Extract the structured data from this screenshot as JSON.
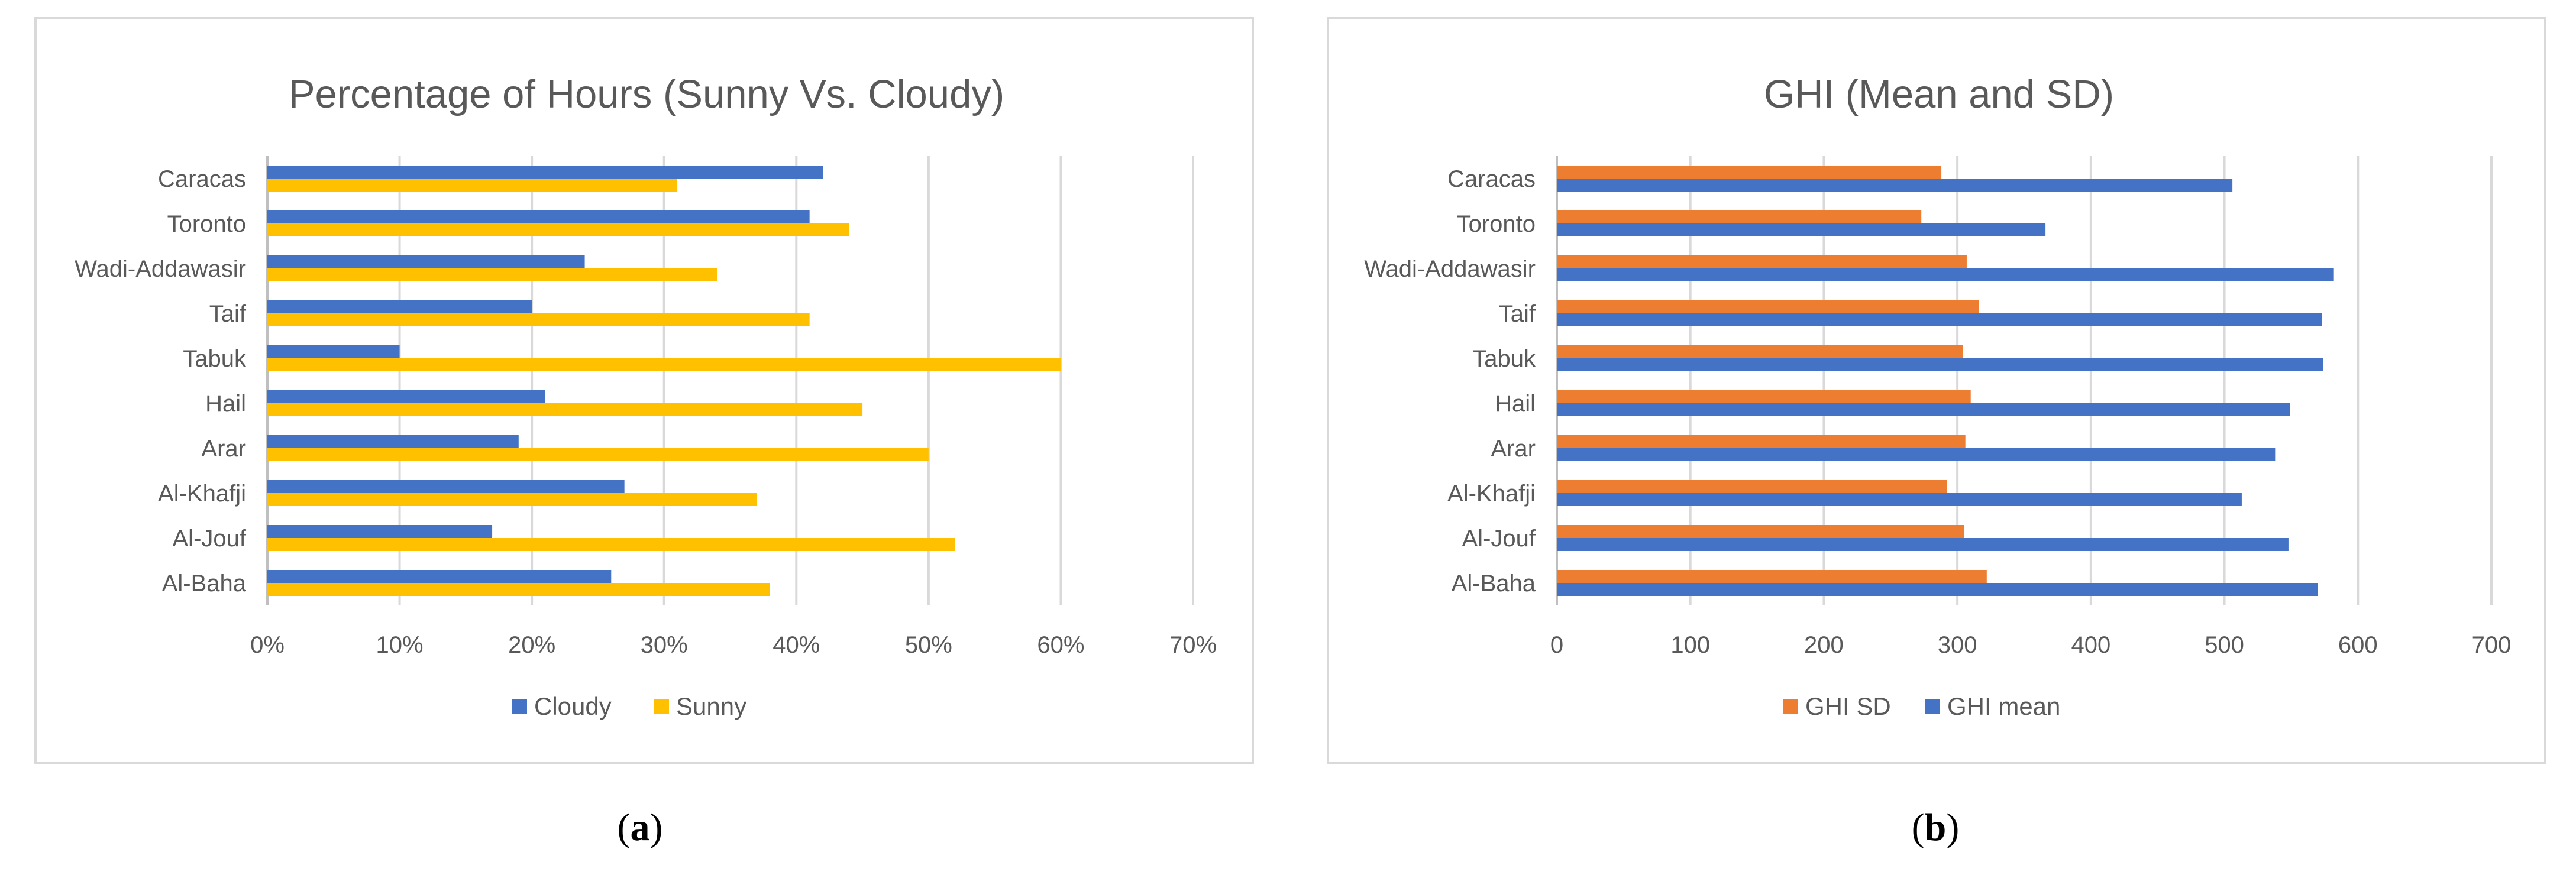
{
  "chart_data": [
    {
      "type": "bar",
      "orientation": "horizontal",
      "title": "Percentage of Hours (Sunny Vs. Cloudy)",
      "categories": [
        "Caracas",
        "Toronto",
        "Wadi-Addawasir",
        "Taif",
        "Tabuk",
        "Hail",
        "Arar",
        "Al-Khafji",
        "Al-Jouf",
        "Al-Baha"
      ],
      "series": [
        {
          "name": "Cloudy",
          "color": "#4472c4",
          "values": [
            42,
            41,
            24,
            20,
            10,
            21,
            19,
            27,
            17,
            26
          ]
        },
        {
          "name": "Sunny",
          "color": "#ffc000",
          "values": [
            31,
            44,
            34,
            41,
            60,
            45,
            50,
            37,
            52,
            38
          ]
        }
      ],
      "ticks": [
        "0%",
        "10%",
        "20%",
        "30%",
        "40%",
        "50%",
        "60%",
        "70%"
      ],
      "xlim": [
        0,
        70
      ],
      "grid": true,
      "legend": "bottom"
    },
    {
      "type": "bar",
      "orientation": "horizontal",
      "title": "GHI (Mean and SD)",
      "categories": [
        "Caracas",
        "Toronto",
        "Wadi-Addawasir",
        "Taif",
        "Tabuk",
        "Hail",
        "Arar",
        "Al-Khafji",
        "Al-Jouf",
        "Al-Baha"
      ],
      "series": [
        {
          "name": "GHI SD",
          "color": "#ed7d31",
          "values": [
            288,
            273,
            307,
            316,
            304,
            310,
            306,
            292,
            305,
            322
          ]
        },
        {
          "name": "GHI mean",
          "color": "#4472c4",
          "values": [
            506,
            366,
            582,
            573,
            574,
            549,
            538,
            513,
            548,
            570
          ]
        }
      ],
      "ticks": [
        "0",
        "100",
        "200",
        "300",
        "400",
        "500",
        "600",
        "700"
      ],
      "xlim": [
        0,
        700
      ],
      "grid": true,
      "legend": "bottom"
    }
  ],
  "captions": {
    "a": "a",
    "b": "b"
  }
}
